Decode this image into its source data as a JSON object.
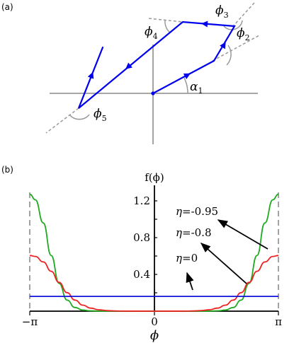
{
  "panel_a": {
    "label": "(a)",
    "angles": {
      "alpha1": {
        "sym": "α",
        "sub": "1"
      },
      "phi2": {
        "sym": "ϕ",
        "sub": "2"
      },
      "phi3": {
        "sym": "ϕ",
        "sub": "3"
      },
      "phi4": {
        "sym": "ϕ",
        "sub": "4"
      },
      "phi5": {
        "sym": "ϕ",
        "sub": "5"
      }
    },
    "colors": {
      "path": "#0000ee",
      "axes": "#999999",
      "dashed": "#999999"
    }
  },
  "panel_b": {
    "label": "(b)",
    "ylabel": "f(ϕ)",
    "xlabel": "ϕ",
    "x_ticks": [
      "−π",
      "0",
      "π"
    ],
    "y_ticks": [
      "1.2",
      "0.8",
      "0.4"
    ],
    "legend": [
      {
        "eta": "η",
        "value": "=-0.95",
        "color": "#22aa22"
      },
      {
        "eta": "η",
        "value": "=-0.8",
        "color": "#ee2222"
      },
      {
        "eta": "η",
        "value": "=0",
        "color": "#1111dd"
      }
    ]
  },
  "chart_data": {
    "type": "line",
    "title": "",
    "xlabel": "ϕ",
    "ylabel": "f(ϕ)",
    "xlim": [
      -3.1416,
      3.1416
    ],
    "ylim": [
      0,
      1.28
    ],
    "x_tick_labels": [
      "−π",
      "0",
      "π"
    ],
    "y_tick_labels": [
      "0.4",
      "0.8",
      "1.2"
    ],
    "series": [
      {
        "name": "η=-0.95",
        "color": "#22aa22",
        "x": [
          -3.1416,
          -3.0,
          -2.8,
          -2.6,
          -2.4,
          -2.2,
          -2.0,
          -1.8,
          -1.6,
          -1.4,
          -1.2,
          -1.0,
          0,
          1.0,
          1.2,
          1.4,
          1.6,
          1.8,
          2.0,
          2.2,
          2.4,
          2.6,
          2.8,
          3.0,
          3.1416
        ],
        "y": [
          1.26,
          1.2,
          0.95,
          0.6,
          0.3,
          0.12,
          0.04,
          0.012,
          0.004,
          0.001,
          0.0,
          0.0,
          0.0,
          0.0,
          0.0,
          0.001,
          0.004,
          0.012,
          0.04,
          0.12,
          0.3,
          0.6,
          0.95,
          1.2,
          1.26
        ]
      },
      {
        "name": "η=-0.8",
        "color": "#ee2222",
        "x": [
          -3.1416,
          -3.0,
          -2.8,
          -2.6,
          -2.4,
          -2.2,
          -2.0,
          -1.8,
          -1.6,
          -1.4,
          -1.2,
          -1.0,
          -0.8,
          0,
          0.8,
          1.0,
          1.2,
          1.4,
          1.6,
          1.8,
          2.0,
          2.2,
          2.4,
          2.6,
          2.8,
          3.0,
          3.1416
        ],
        "y": [
          0.6,
          0.59,
          0.53,
          0.43,
          0.31,
          0.2,
          0.12,
          0.065,
          0.033,
          0.015,
          0.007,
          0.003,
          0.001,
          0.0,
          0.001,
          0.003,
          0.007,
          0.015,
          0.033,
          0.065,
          0.12,
          0.2,
          0.31,
          0.43,
          0.53,
          0.59,
          0.6
        ]
      },
      {
        "name": "η=0",
        "color": "#1111dd",
        "x": [
          -3.1416,
          3.1416
        ],
        "y": [
          0.159,
          0.159
        ]
      }
    ]
  }
}
